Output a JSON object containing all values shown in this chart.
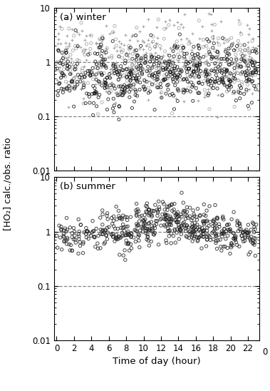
{
  "title_a": "(a) winter",
  "title_b": "(b) summer",
  "ylabel": "[HO₂] calc./obs. ratio",
  "xlabel": "Time of day (hour)",
  "ylim": [
    0.01,
    10
  ],
  "xlim": [
    -0.3,
    23.3
  ],
  "hline1": 1.0,
  "hline2": 0.1,
  "hline_color": "#888888",
  "circle_dark": "#111111",
  "circle_light": "#999999",
  "plus_color": "#999999",
  "circle_summer": "#222222",
  "random_seed": 42,
  "n_winter_dark": 550,
  "n_winter_light": 280,
  "n_winter_plus": 280,
  "n_summer": 580,
  "yticks": [
    0.01,
    0.1,
    1,
    10
  ],
  "ytick_labels": [
    "0.01",
    "0.1",
    "1",
    "10"
  ],
  "xtick_labels": [
    "0",
    "2",
    "4",
    "6",
    "8",
    "10",
    "12",
    "14",
    "16",
    "18",
    "20",
    "22",
    "0"
  ]
}
